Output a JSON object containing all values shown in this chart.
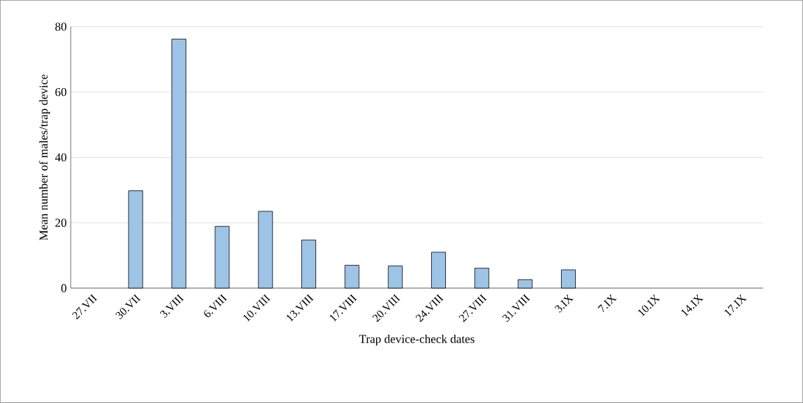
{
  "chart_data": {
    "type": "bar",
    "xlabel": "Trap device-check dates",
    "ylabel": "Mean number of males/trap device",
    "categories": [
      "27.VII",
      "30.VII",
      "3.VIII",
      "6.VIII",
      "10.VIII",
      "13.VIII",
      "17.VIII",
      "20.VIII",
      "24.VIII",
      "27.VIII",
      "31.VIII",
      "3.IX",
      "7.IX",
      "10.IX",
      "14.IX",
      "17.IX"
    ],
    "values": [
      null,
      29.8,
      76.2,
      18.9,
      23.5,
      14.7,
      7.0,
      6.8,
      11.0,
      6.1,
      2.6,
      5.6,
      null,
      null,
      null,
      null
    ],
    "color": "#9dc3e6",
    "ylim": [
      0,
      80
    ],
    "yticks": [
      0,
      20,
      40,
      60,
      80
    ],
    "grid": "y"
  }
}
